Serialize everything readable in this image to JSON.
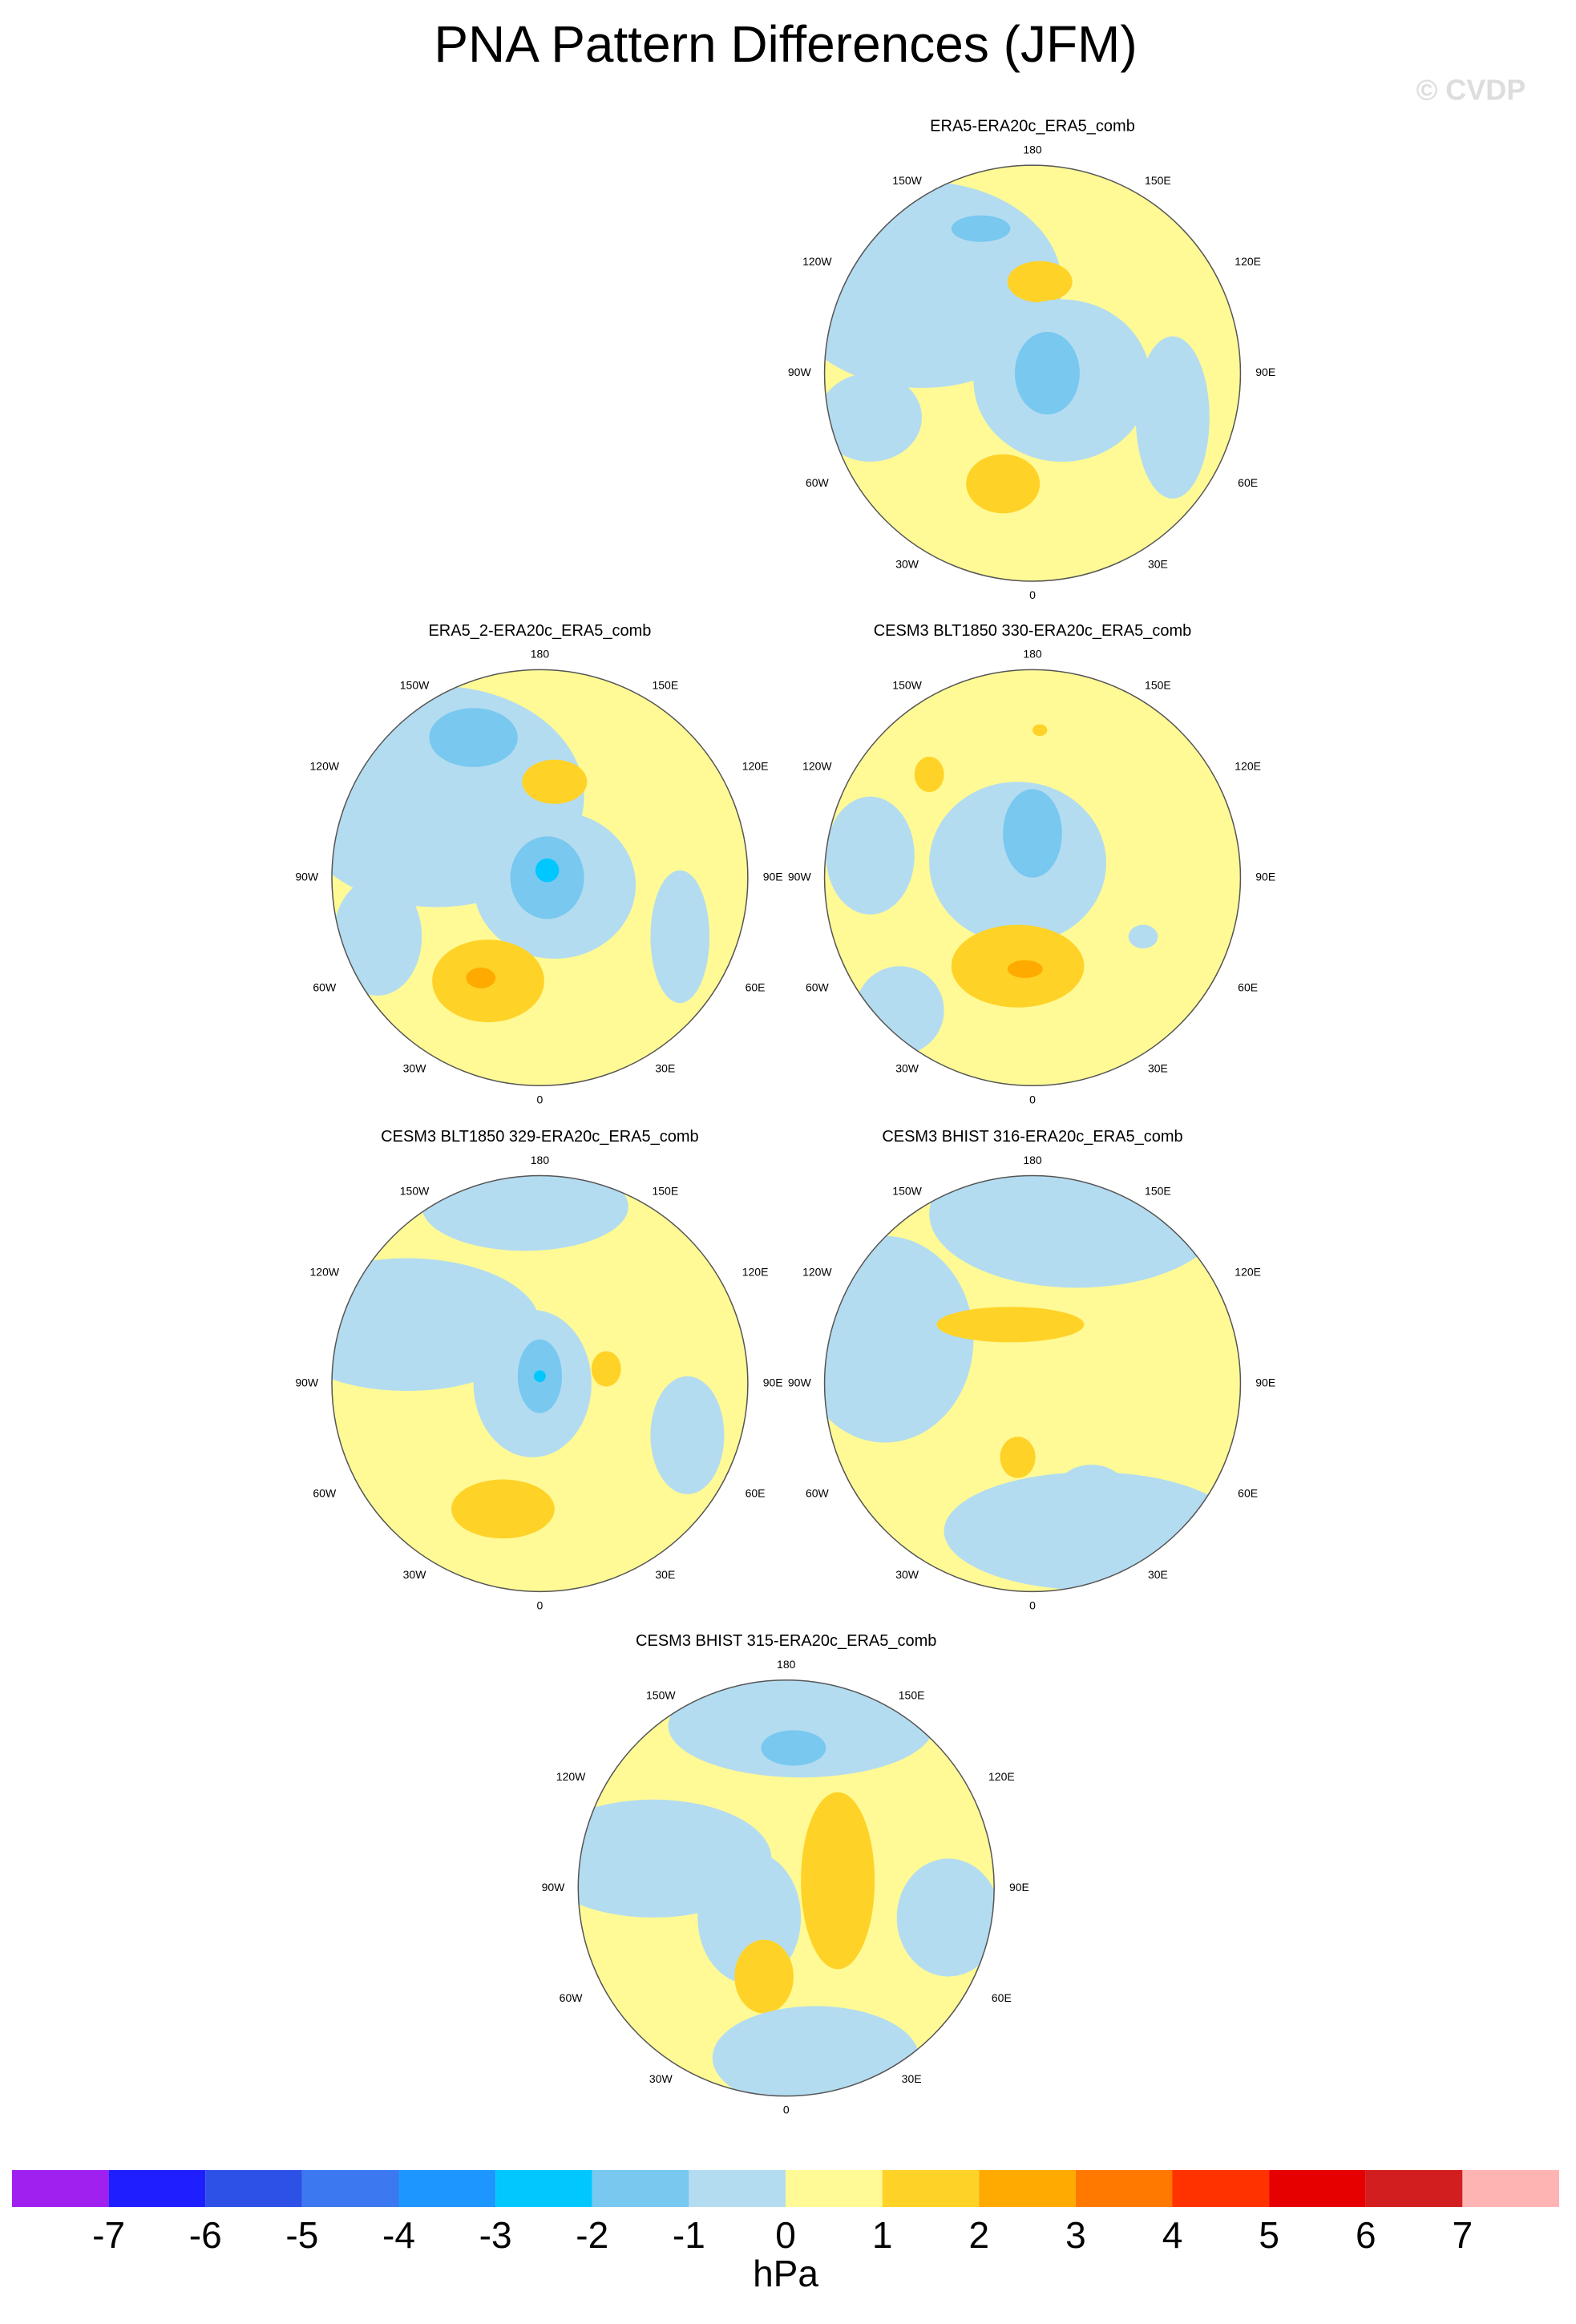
{
  "title": "PNA Pattern Differences (JFM)",
  "watermark": "© CVDP",
  "panels": [
    {
      "title": "ERA5-ERA20c_ERA5_comb",
      "lon_labels": [
        "180",
        "150E",
        "120E",
        "90E",
        "60E",
        "30E",
        "0",
        "30W",
        "60W",
        "90W",
        "120W",
        "150W"
      ]
    },
    {
      "title": "ERA5_2-ERA20c_ERA5_comb",
      "lon_labels": [
        "180",
        "150E",
        "120E",
        "90E",
        "60E",
        "30E",
        "0",
        "30W",
        "60W",
        "90W",
        "120W",
        "150W"
      ]
    },
    {
      "title": "CESM3 BLT1850 330-ERA20c_ERA5_comb",
      "lon_labels": [
        "180",
        "150E",
        "120E",
        "90E",
        "60E",
        "30E",
        "0",
        "30W",
        "60W",
        "90W",
        "120W",
        "150W"
      ]
    },
    {
      "title": "CESM3 BLT1850 329-ERA20c_ERA5_comb",
      "lon_labels": [
        "180",
        "150E",
        "120E",
        "90E",
        "60E",
        "30E",
        "0",
        "30W",
        "60W",
        "90W",
        "120W",
        "150W"
      ]
    },
    {
      "title": "CESM3 BHIST 316-ERA20c_ERA5_comb",
      "lon_labels": [
        "180",
        "150E",
        "120E",
        "90E",
        "60E",
        "30E",
        "0",
        "30W",
        "60W",
        "90W",
        "120W",
        "150W"
      ]
    },
    {
      "title": "CESM3 BHIST 315-ERA20c_ERA5_comb",
      "lon_labels": [
        "180",
        "150E",
        "120E",
        "90E",
        "60E",
        "30E",
        "0",
        "30W",
        "60W",
        "90W",
        "120W",
        "150W"
      ]
    }
  ],
  "colorbar": {
    "colors": [
      "#a020f0",
      "#1e1eff",
      "#2d50e6",
      "#3c78f0",
      "#1e96ff",
      "#00c8ff",
      "#78c8f0",
      "#b4dcf0",
      "#fffa96",
      "#ffd228",
      "#ffaa00",
      "#ff7800",
      "#ff3200",
      "#e60000",
      "#d21e1e",
      "#ffb4b4"
    ],
    "ticks": [
      -7,
      -6,
      -5,
      -4,
      -3,
      -2,
      -1,
      0,
      1,
      2,
      3,
      4,
      5,
      6,
      7
    ],
    "unit": "hPa"
  }
}
